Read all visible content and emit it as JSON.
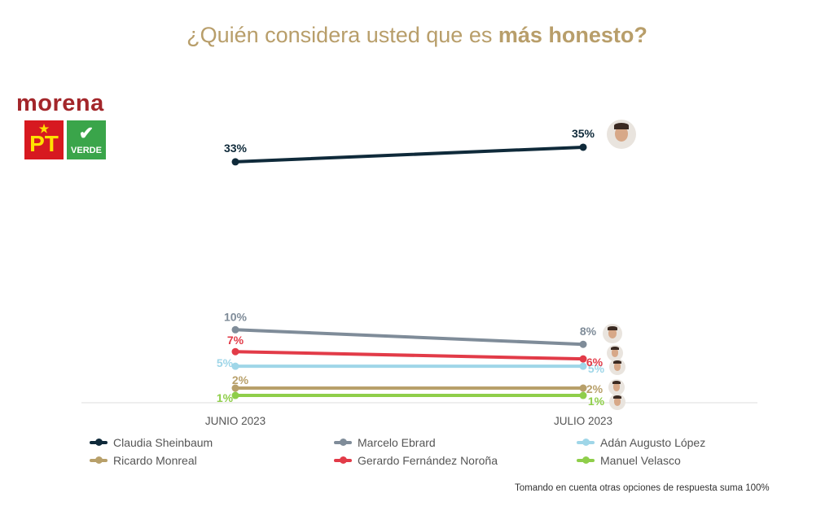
{
  "title": {
    "prefix": "¿Quién considera usted que es ",
    "bold": "más honesto?"
  },
  "logos": {
    "morena": "morena",
    "pt": "PT",
    "verde": "VERDE"
  },
  "footnote": "Tomando en cuenta otras opciones de respuesta suma 100%",
  "colors": {
    "title": "#b89e6a",
    "axis": "#dddddd"
  },
  "chart_data": {
    "type": "line",
    "title": "¿Quién considera usted que es más honesto?",
    "categories": [
      "JUNIO 2023",
      "JULIO 2023"
    ],
    "series": [
      {
        "name": "Claudia Sheinbaum",
        "values": [
          33,
          35
        ],
        "labels": [
          "33%",
          "35%"
        ],
        "color": "#0f2a3a"
      },
      {
        "name": "Marcelo Ebrard",
        "values": [
          10,
          8
        ],
        "labels": [
          "10%",
          "8%"
        ],
        "color": "#7f8c99"
      },
      {
        "name": "Adán Augusto López",
        "values": [
          5,
          5
        ],
        "labels": [
          "5%",
          "5%"
        ],
        "color": "#9fd6e8"
      },
      {
        "name": "Ricardo Monreal",
        "values": [
          2,
          2
        ],
        "labels": [
          "2%",
          "2%"
        ],
        "color": "#b8a06a"
      },
      {
        "name": "Gerardo Fernández Noroña",
        "values": [
          7,
          6
        ],
        "labels": [
          "7%",
          "6%"
        ],
        "color": "#e23b48"
      },
      {
        "name": "Manuel Velasco",
        "values": [
          1,
          1
        ],
        "labels": [
          "1%",
          "1%"
        ],
        "color": "#8fce4a"
      }
    ],
    "ylim": [
      0,
      37
    ],
    "grid": false,
    "legend_position": "bottom"
  }
}
